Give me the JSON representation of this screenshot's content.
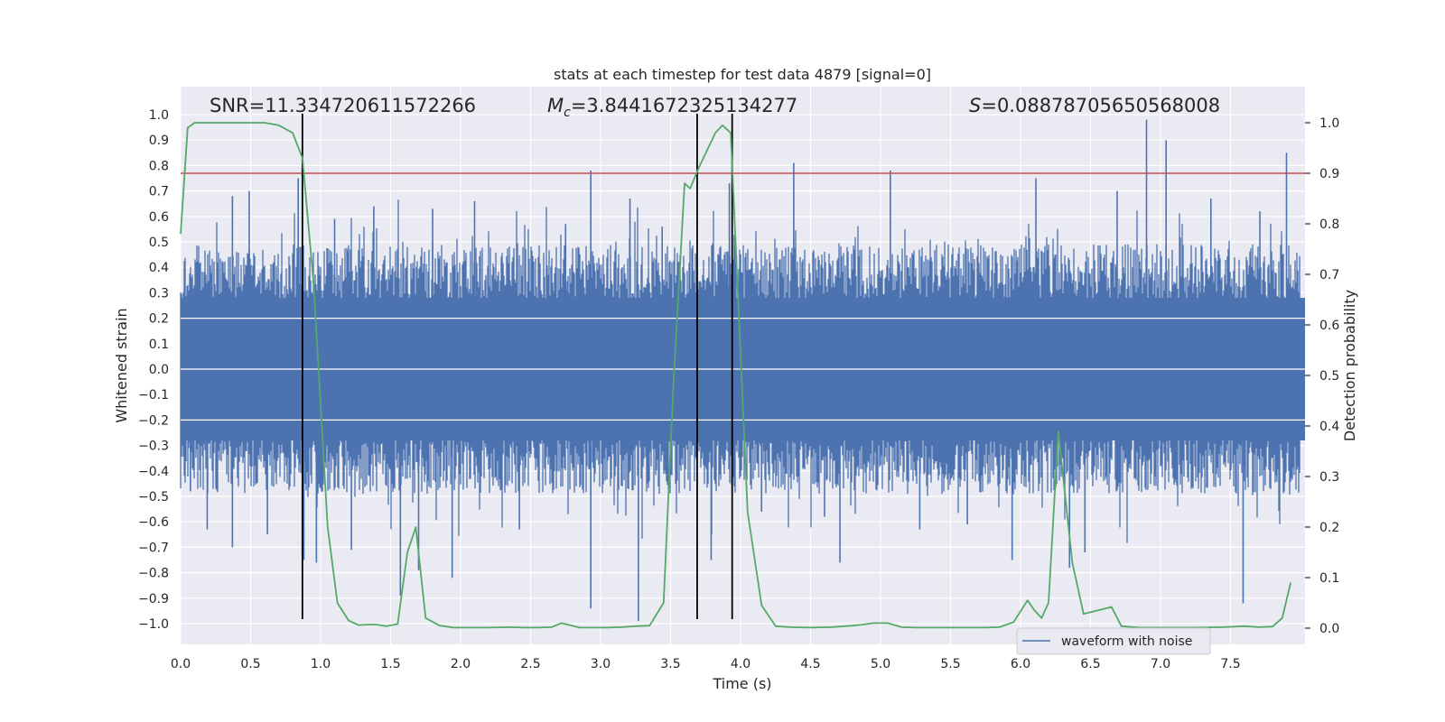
{
  "chart_data": {
    "type": "line",
    "title": "stats at each timestep for test data 4879 [signal=0]",
    "xlabel": "Time (s)",
    "ylabel": "Whitened strain",
    "y2label": "Detection probability",
    "xlim": [
      0.0,
      8.0
    ],
    "ylim": [
      -1.1,
      1.1
    ],
    "y2lim": [
      -0.05,
      1.02
    ],
    "xticks": [
      "0.0",
      "0.5",
      "1.0",
      "1.5",
      "2.0",
      "2.5",
      "3.0",
      "3.5",
      "4.0",
      "4.5",
      "5.0",
      "5.5",
      "6.0",
      "6.5",
      "7.0",
      "7.5"
    ],
    "yticks": [
      "1.0",
      "0.9",
      "0.8",
      "0.7",
      "0.6",
      "0.5",
      "0.4",
      "0.3",
      "0.2",
      "0.1",
      "0.0",
      "−0.1",
      "−0.2",
      "−0.3",
      "−0.4",
      "−0.5",
      "−0.6",
      "−0.7",
      "−0.8",
      "−0.9",
      "−1.0"
    ],
    "y2ticks": [
      "1.0",
      "0.9",
      "0.8",
      "0.7",
      "0.6",
      "0.5",
      "0.4",
      "0.3",
      "0.2",
      "0.1",
      "0.0"
    ],
    "annotations": {
      "snr": "SNR=11.334720611572266",
      "mc_symbol": "M",
      "mc_sub": "c",
      "mc_value": "=3.8441672325134277",
      "s_symbol": "S",
      "s_value": "=0.08878705650568008"
    },
    "threshold": {
      "y2": 0.9,
      "color": "#c44e52"
    },
    "event_lines": [
      0.87,
      3.69,
      3.94
    ],
    "legend": [
      {
        "label": "waveform with noise",
        "color": "#4c72b0"
      }
    ],
    "series": [
      {
        "name": "waveform with noise",
        "axis": "left",
        "color": "#4c72b0",
        "envelope": {
          "upper_typical": 0.38,
          "lower_typical": -0.38
        },
        "peaks": [
          {
            "x": 0.07,
            "y": -0.48
          },
          {
            "x": 0.19,
            "y": -0.63
          },
          {
            "x": 0.37,
            "y": 0.68
          },
          {
            "x": 0.37,
            "y": -0.7
          },
          {
            "x": 0.49,
            "y": 0.7
          },
          {
            "x": 0.62,
            "y": -0.65
          },
          {
            "x": 0.84,
            "y": 0.75
          },
          {
            "x": 0.88,
            "y": -0.75
          },
          {
            "x": 0.97,
            "y": -0.76
          },
          {
            "x": 1.1,
            "y": 0.59
          },
          {
            "x": 1.22,
            "y": -0.71
          },
          {
            "x": 1.38,
            "y": 0.64
          },
          {
            "x": 1.57,
            "y": -0.89
          },
          {
            "x": 1.7,
            "y": -0.79
          },
          {
            "x": 1.8,
            "y": 0.63
          },
          {
            "x": 1.94,
            "y": -0.82
          },
          {
            "x": 2.1,
            "y": 0.66
          },
          {
            "x": 2.42,
            "y": -0.63
          },
          {
            "x": 2.75,
            "y": 0.57
          },
          {
            "x": 2.93,
            "y": 0.78
          },
          {
            "x": 2.93,
            "y": -0.94
          },
          {
            "x": 3.21,
            "y": 0.67
          },
          {
            "x": 3.27,
            "y": -0.99
          },
          {
            "x": 3.44,
            "y": 0.56
          },
          {
            "x": 3.79,
            "y": -0.75
          },
          {
            "x": 3.92,
            "y": 0.73
          },
          {
            "x": 4.15,
            "y": -0.56
          },
          {
            "x": 4.38,
            "y": 0.81
          },
          {
            "x": 4.6,
            "y": -0.58
          },
          {
            "x": 4.71,
            "y": -0.76
          },
          {
            "x": 5.07,
            "y": 0.78
          },
          {
            "x": 5.28,
            "y": -0.63
          },
          {
            "x": 5.62,
            "y": -0.61
          },
          {
            "x": 5.94,
            "y": -0.75
          },
          {
            "x": 6.11,
            "y": 0.75
          },
          {
            "x": 6.35,
            "y": -0.78
          },
          {
            "x": 6.46,
            "y": -0.72
          },
          {
            "x": 6.69,
            "y": 0.7
          },
          {
            "x": 6.9,
            "y": 0.98
          },
          {
            "x": 7.04,
            "y": 0.9
          },
          {
            "x": 7.36,
            "y": 0.67
          },
          {
            "x": 7.59,
            "y": -0.92
          },
          {
            "x": 7.71,
            "y": 0.62
          },
          {
            "x": 7.9,
            "y": 0.85
          }
        ]
      },
      {
        "name": "detection probability",
        "axis": "right",
        "color": "#55a868",
        "x": [
          0.0,
          0.05,
          0.1,
          0.2,
          0.3,
          0.4,
          0.5,
          0.6,
          0.7,
          0.8,
          0.87,
          0.95,
          1.05,
          1.12,
          1.2,
          1.27,
          1.33,
          1.4,
          1.47,
          1.55,
          1.62,
          1.68,
          1.75,
          1.85,
          1.95,
          2.05,
          2.2,
          2.35,
          2.45,
          2.55,
          2.65,
          2.72,
          2.85,
          2.95,
          3.05,
          3.15,
          3.25,
          3.35,
          3.45,
          3.52,
          3.6,
          3.64,
          3.7,
          3.82,
          3.87,
          3.93,
          4.05,
          4.15,
          4.25,
          4.35,
          4.5,
          4.65,
          4.8,
          4.87,
          4.95,
          5.05,
          5.15,
          5.25,
          5.35,
          5.55,
          5.75,
          5.85,
          5.95,
          6.05,
          6.1,
          6.15,
          6.2,
          6.27,
          6.37,
          6.45,
          6.55,
          6.65,
          6.72,
          6.85,
          7.05,
          7.25,
          7.45,
          7.6,
          7.7,
          7.8,
          7.87,
          7.93
        ],
        "y": [
          0.78,
          0.99,
          1.0,
          1.0,
          1.0,
          1.0,
          1.0,
          1.0,
          0.995,
          0.98,
          0.93,
          0.68,
          0.2,
          0.05,
          0.015,
          0.006,
          0.007,
          0.007,
          0.004,
          0.008,
          0.15,
          0.2,
          0.02,
          0.005,
          0.001,
          0.001,
          0.001,
          0.002,
          0.001,
          0.001,
          0.002,
          0.01,
          0.001,
          0.001,
          0.001,
          0.002,
          0.004,
          0.005,
          0.05,
          0.48,
          0.88,
          0.87,
          0.91,
          0.98,
          0.995,
          0.98,
          0.23,
          0.045,
          0.004,
          0.002,
          0.001,
          0.002,
          0.005,
          0.007,
          0.01,
          0.01,
          0.002,
          0.001,
          0.001,
          0.001,
          0.001,
          0.002,
          0.012,
          0.055,
          0.035,
          0.02,
          0.05,
          0.39,
          0.13,
          0.028,
          0.035,
          0.042,
          0.004,
          0.001,
          0.001,
          0.001,
          0.002,
          0.004,
          0.002,
          0.003,
          0.02,
          0.09
        ]
      }
    ]
  }
}
